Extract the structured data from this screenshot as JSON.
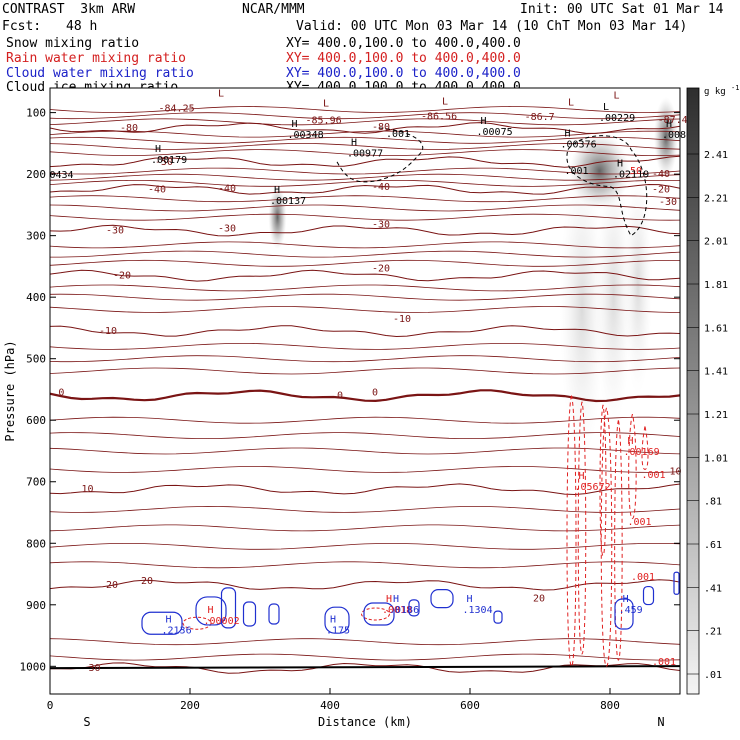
{
  "header": {
    "title": "CONTRAST  3km ARW",
    "producer": "NCAR/MMM",
    "init": "Init: 00 UTC Sat 01 Mar 14",
    "fcst_label": "Fcst:",
    "fcst_value": "48 h",
    "valid": "Valid: 00 UTC Mon 03 Mar 14 (10 ChT Mon 03 Mar 14)",
    "fields": [
      {
        "name": "Snow mixing ratio",
        "xy": "XY= 400.0,100.0 to 400.0,400.0",
        "color": "#000000"
      },
      {
        "name": "Rain water mixing ratio",
        "xy": "XY= 400.0,100.0 to 400.0,400.0",
        "color": "#d42020"
      },
      {
        "name": "Cloud water mixing ratio",
        "xy": "XY= 400.0,100.0 to 400.0,400.0",
        "color": "#1c22c8"
      },
      {
        "name": "Cloud ice mixing ratio",
        "xy": "XY= 400.0,100.0 to 400.0,400.0",
        "color": "#000000"
      }
    ]
  },
  "colors": {
    "temperature": "#7a1414",
    "rain": "#e02020",
    "cloud_water": "#2030d0",
    "snow_shade": "#9a9a9a"
  },
  "chart_data": {
    "type": "cross-section",
    "xlabel": "Distance (km)",
    "ylabel": "Pressure (hPa)",
    "xlim": [
      0,
      900
    ],
    "ylim": [
      1045,
      60
    ],
    "x_ticks": [
      0,
      200,
      400,
      600,
      800
    ],
    "y_ticks": [
      100,
      200,
      300,
      400,
      500,
      600,
      700,
      800,
      900,
      1000
    ],
    "end_labels": {
      "left": "S",
      "right": "N"
    },
    "colorbar": {
      "unit": "g kg",
      "unit_exp": "-1",
      "ticks": [
        "2.41",
        "2.21",
        "2.01",
        "1.81",
        "1.61",
        "1.41",
        "1.21",
        "1.01",
        ".81",
        ".61",
        ".41",
        ".21",
        ".01"
      ]
    },
    "temperature_contours": [
      {
        "value": -80,
        "pressure": 125,
        "label_x": 100,
        "label": "-80"
      },
      {
        "value": -50,
        "pressure": 180,
        "label_x": 150,
        "label": "-50"
      },
      {
        "value": -40,
        "pressure": 225,
        "label_x": 140,
        "label": "-40"
      },
      {
        "value": -30,
        "pressure": 292,
        "label_x": 80,
        "label": "-30"
      },
      {
        "value": -20,
        "pressure": 365,
        "label_x": 90,
        "label": "-20"
      },
      {
        "value": -10,
        "pressure": 455,
        "label_x": 70,
        "label": "-10"
      },
      {
        "value": 0,
        "pressure": 560,
        "label_x": 410,
        "label": "0"
      },
      {
        "value": 10,
        "pressure": 712,
        "label_x": 45,
        "label": "10"
      },
      {
        "value": 20,
        "pressure": 868,
        "label_x": 80,
        "label": "20"
      },
      {
        "value": 30,
        "pressure": 1003,
        "label_x": 55,
        "label": "30"
      }
    ],
    "contour_labels": [
      {
        "text": "-84.25",
        "x": 155,
        "p": 98,
        "color": "temperature"
      },
      {
        "text": "-85.96",
        "x": 365,
        "p": 118,
        "color": "temperature"
      },
      {
        "text": "-86.56",
        "x": 530,
        "p": 111,
        "color": "temperature"
      },
      {
        "text": "-86.7",
        "x": 678,
        "p": 112,
        "color": "temperature"
      },
      {
        "text": "-87.48",
        "x": 868,
        "p": 117,
        "color": "temperature"
      },
      {
        "text": "-80",
        "x": 460,
        "p": 128,
        "color": "temperature"
      },
      {
        "text": "-40",
        "x": 240,
        "p": 228,
        "color": "temperature"
      },
      {
        "text": "-40",
        "x": 460,
        "p": 226,
        "color": "temperature"
      },
      {
        "text": "-30",
        "x": 240,
        "p": 293,
        "color": "temperature"
      },
      {
        "text": "-30",
        "x": 460,
        "p": 287,
        "color": "temperature"
      },
      {
        "text": "-20",
        "x": 460,
        "p": 358,
        "color": "temperature"
      },
      {
        "text": "-10",
        "x": 490,
        "p": 440,
        "color": "temperature"
      },
      {
        "text": "10",
        "x": 885,
        "p": 688,
        "color": "temperature"
      },
      {
        "text": "20",
        "x": 690,
        "p": 895,
        "color": "temperature"
      },
      {
        "text": "20",
        "x": 130,
        "p": 866,
        "color": "temperature"
      },
      {
        "text": "-20",
        "x": 860,
        "p": 230,
        "color": "temperature"
      },
      {
        "text": "-30",
        "x": 870,
        "p": 250,
        "color": "temperature"
      },
      {
        "text": "-40",
        "x": 860,
        "p": 205,
        "color": "temperature"
      },
      {
        "text": "0",
        "x": 12,
        "p": 560,
        "color": "temperature"
      },
      {
        "text": "0",
        "x": 460,
        "p": 560,
        "color": "temperature"
      },
      {
        "text": ".001",
        "x": 480,
        "p": 140,
        "color": "black"
      },
      {
        "text": ".001",
        "x": 735,
        "p": 200,
        "color": "black"
      },
      {
        "text": ".001",
        "x": 830,
        "p": 860,
        "color": "rain"
      },
      {
        "text": ".001",
        "x": 845,
        "p": 694,
        "color": "rain"
      },
      {
        "text": ".001",
        "x": 825,
        "p": 770,
        "color": "rain"
      },
      {
        "text": ".001",
        "x": 860,
        "p": 998,
        "color": "rain"
      },
      {
        "text": "-50",
        "x": 820,
        "p": 200,
        "color": "rain"
      }
    ],
    "extrema": [
      {
        "letter": "L",
        "value": "",
        "x": 240,
        "p": 90,
        "color": "temperature"
      },
      {
        "letter": "L",
        "value": "",
        "x": 390,
        "p": 106,
        "color": "temperature"
      },
      {
        "letter": "L",
        "value": "",
        "x": 560,
        "p": 103,
        "color": "temperature"
      },
      {
        "letter": "L",
        "value": "",
        "x": 740,
        "p": 105,
        "color": "temperature"
      },
      {
        "letter": "L",
        "value": "",
        "x": 805,
        "p": 93,
        "color": "temperature"
      },
      {
        "letter": "H",
        "value": ".00348",
        "x": 345,
        "p": 140,
        "color": "black"
      },
      {
        "letter": "H",
        "value": ".00977",
        "x": 430,
        "p": 170,
        "color": "black"
      },
      {
        "letter": "H",
        "value": ".00179",
        "x": 150,
        "p": 180,
        "color": "black"
      },
      {
        "letter": "H",
        "value": ".00075",
        "x": 615,
        "p": 135,
        "color": "black"
      },
      {
        "letter": "H",
        "value": ".00376",
        "x": 735,
        "p": 155,
        "color": "black"
      },
      {
        "letter": "L",
        "value": ".00229",
        "x": 790,
        "p": 112,
        "color": "black"
      },
      {
        "letter": "H",
        "value": ".0080",
        "x": 880,
        "p": 140,
        "color": "black"
      },
      {
        "letter": "H",
        "value": ".02119",
        "x": 810,
        "p": 204,
        "color": "black"
      },
      {
        "letter": "H",
        "value": ".00137",
        "x": 320,
        "p": 247,
        "color": "black"
      },
      {
        "letter": "",
        "value": "0434",
        "x": 5,
        "p": 205,
        "color": "black"
      },
      {
        "letter": "H",
        "value": ".00169",
        "x": 825,
        "p": 655,
        "color": "rain"
      },
      {
        "letter": "H",
        "value": ".05672",
        "x": 755,
        "p": 712,
        "color": "rain"
      },
      {
        "letter": "H",
        "value": ".00002",
        "x": 225,
        "p": 930,
        "color": "rain"
      },
      {
        "letter": "H",
        "value": ".0018",
        "x": 480,
        "p": 912,
        "color": "rain"
      },
      {
        "letter": "H",
        "value": ".2136",
        "x": 165,
        "p": 945,
        "color": "cloud_water"
      },
      {
        "letter": "H",
        "value": ".175",
        "x": 400,
        "p": 945,
        "color": "cloud_water"
      },
      {
        "letter": "H",
        "value": ".0186",
        "x": 490,
        "p": 912,
        "color": "cloud_water"
      },
      {
        "letter": "H",
        "value": ".1304",
        "x": 595,
        "p": 912,
        "color": "cloud_water"
      },
      {
        "letter": "H",
        "value": ".459",
        "x": 818,
        "p": 912,
        "color": "cloud_water"
      }
    ]
  }
}
